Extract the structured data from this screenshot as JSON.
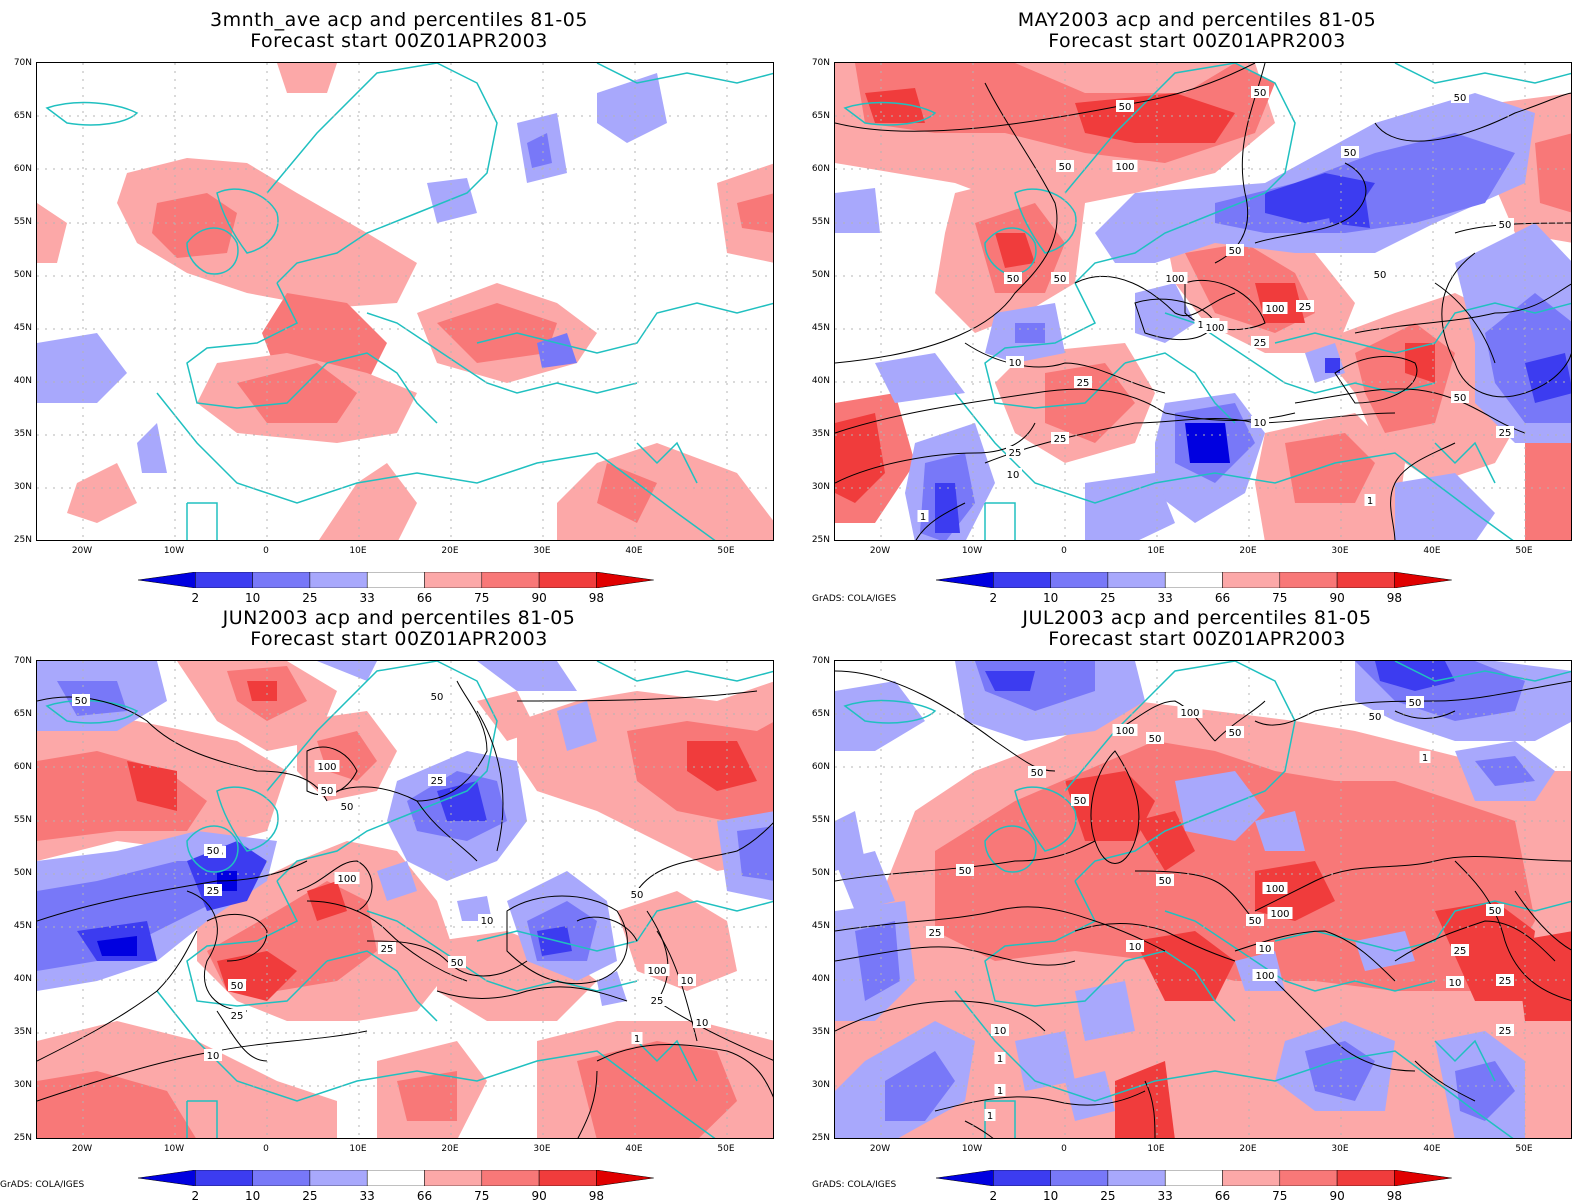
{
  "panels": [
    {
      "title_line1": "3mnth_ave acp and percentiles 81-05",
      "title_line2": "Forecast start 00Z01APR2003",
      "contour_labels": []
    },
    {
      "title_line1": "MAY2003 acp and percentiles 81-05",
      "title_line2": "Forecast start 00Z01APR2003",
      "contour_labels": [
        "50",
        "50",
        "50",
        "100",
        "50",
        "50",
        "50",
        "50",
        "50",
        "100",
        "100",
        "100",
        "25",
        "100",
        "50",
        "25",
        "25",
        "10",
        "25",
        "10",
        "10",
        "25",
        "50",
        "1",
        "1",
        "50",
        "25"
      ]
    },
    {
      "title_line1": "JUN2003 acp and percentiles 81-05",
      "title_line2": "Forecast start 00Z01APR2003",
      "contour_labels": [
        "50",
        "50",
        "100",
        "50",
        "50",
        "25",
        "50",
        "25",
        "100",
        "25",
        "10",
        "25",
        "50",
        "10",
        "50",
        "100",
        "25",
        "10",
        "50",
        "25",
        "10",
        "1"
      ]
    },
    {
      "title_line1": "JUL2003 acp and percentiles 81-05",
      "title_line2": "Forecast start 00Z01APR2003",
      "contour_labels": [
        "50",
        "50",
        "100",
        "50",
        "100",
        "50",
        "50",
        "50",
        "100",
        "50",
        "100",
        "25",
        "50",
        "10",
        "10",
        "25",
        "10",
        "25",
        "50",
        "100",
        "25",
        "10",
        "1",
        "1",
        "1",
        "1",
        "50"
      ]
    }
  ],
  "axes": {
    "lat_labels": [
      "70N",
      "65N",
      "60N",
      "55N",
      "50N",
      "45N",
      "40N",
      "35N",
      "30N",
      "25N"
    ],
    "lon_labels": [
      "20W",
      "10W",
      "0",
      "10E",
      "20E",
      "30E",
      "40E",
      "50E"
    ]
  },
  "colorbar": {
    "labels": [
      "2",
      "10",
      "25",
      "33",
      "66",
      "75",
      "90",
      "98"
    ],
    "colors": [
      "#0000e0",
      "#3c3cf0",
      "#7878f8",
      "#a8a8fc",
      "#ffffff",
      "#fca8a8",
      "#f87878",
      "#f03c3c",
      "#e00000"
    ]
  },
  "credit": "GrADS: COLA/IGES",
  "colors": {
    "coastline": "#20c0c0",
    "contour": "#000000",
    "grid": "#b4b4b4"
  }
}
